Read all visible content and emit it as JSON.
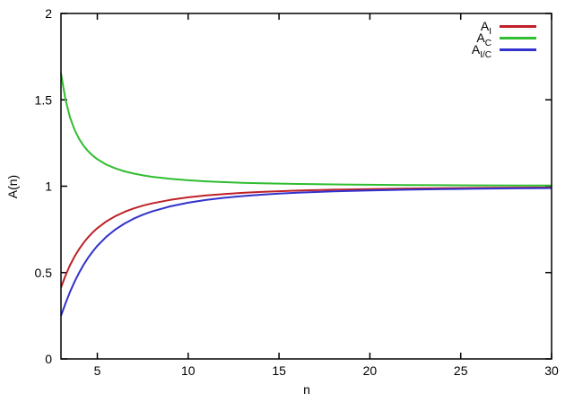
{
  "chart_data": {
    "type": "line",
    "title": "",
    "xlabel": "n",
    "ylabel": "A(n)",
    "xlim": [
      3,
      30
    ],
    "ylim": [
      0,
      2
    ],
    "grid": false,
    "legend_position": "top-right-inside",
    "background_color": "#ffffff",
    "axis_color": "#000000",
    "xticks": [
      {
        "v": 5,
        "label": "5"
      },
      {
        "v": 10,
        "label": "10"
      },
      {
        "v": 15,
        "label": "15"
      },
      {
        "v": 20,
        "label": "20"
      },
      {
        "v": 25,
        "label": "25"
      },
      {
        "v": 30,
        "label": "30"
      }
    ],
    "yticks": [
      {
        "v": 0,
        "label": "0"
      },
      {
        "v": 0.5,
        "label": "0.5"
      },
      {
        "v": 1,
        "label": "1"
      },
      {
        "v": 1.5,
        "label": "1.5"
      },
      {
        "v": 2,
        "label": "2"
      }
    ],
    "x": [
      3,
      3.25,
      3.5,
      3.75,
      4,
      4.25,
      4.5,
      4.75,
      5,
      5.5,
      6,
      6.5,
      7,
      7.5,
      8,
      9,
      10,
      11,
      12,
      13,
      14,
      15,
      16,
      17,
      18,
      20,
      22,
      24,
      26,
      28,
      30
    ],
    "series": [
      {
        "name": "A_I",
        "legend_base": "A",
        "legend_sub": "I",
        "color": "#be2128",
        "values": [
          0.4135,
          0.4837,
          0.5431,
          0.5936,
          0.6366,
          0.6735,
          0.7053,
          0.7328,
          0.7568,
          0.7963,
          0.827,
          0.8514,
          0.871,
          0.8871,
          0.9003,
          0.9207,
          0.9355,
          0.9465,
          0.9549,
          0.9615,
          0.9668,
          0.971,
          0.9745,
          0.9774,
          0.9798,
          0.9836,
          0.9864,
          0.9886,
          0.9903,
          0.9916,
          0.9927
        ]
      },
      {
        "name": "A_C",
        "legend_base": "A",
        "legend_sub": "C",
        "color": "#30bd30",
        "values": [
          1.654,
          1.4988,
          1.3973,
          1.3257,
          1.2732,
          1.2331,
          1.2019,
          1.1767,
          1.1563,
          1.1249,
          1.1027,
          1.0858,
          1.073,
          1.0629,
          1.0548,
          1.0427,
          1.0343,
          1.0281,
          1.0235,
          1.0199,
          1.0171,
          1.0149,
          1.0131,
          1.0115,
          1.0103,
          1.0083,
          1.007,
          1.0058,
          1.0048,
          1.0042,
          1.0037
        ]
      },
      {
        "name": "A_I/C",
        "legend_base": "A",
        "legend_sub": "I/C",
        "color": "#3232cd",
        "values": [
          0.25,
          0.3227,
          0.3887,
          0.4477,
          0.5,
          0.5462,
          0.5868,
          0.6228,
          0.6545,
          0.7077,
          0.75,
          0.784,
          0.8117,
          0.8346,
          0.8536,
          0.883,
          0.9045,
          0.9206,
          0.933,
          0.9427,
          0.9505,
          0.9568,
          0.9619,
          0.9662,
          0.9699,
          0.9755,
          0.9798,
          0.983,
          0.9855,
          0.9875,
          0.9891
        ]
      }
    ]
  }
}
